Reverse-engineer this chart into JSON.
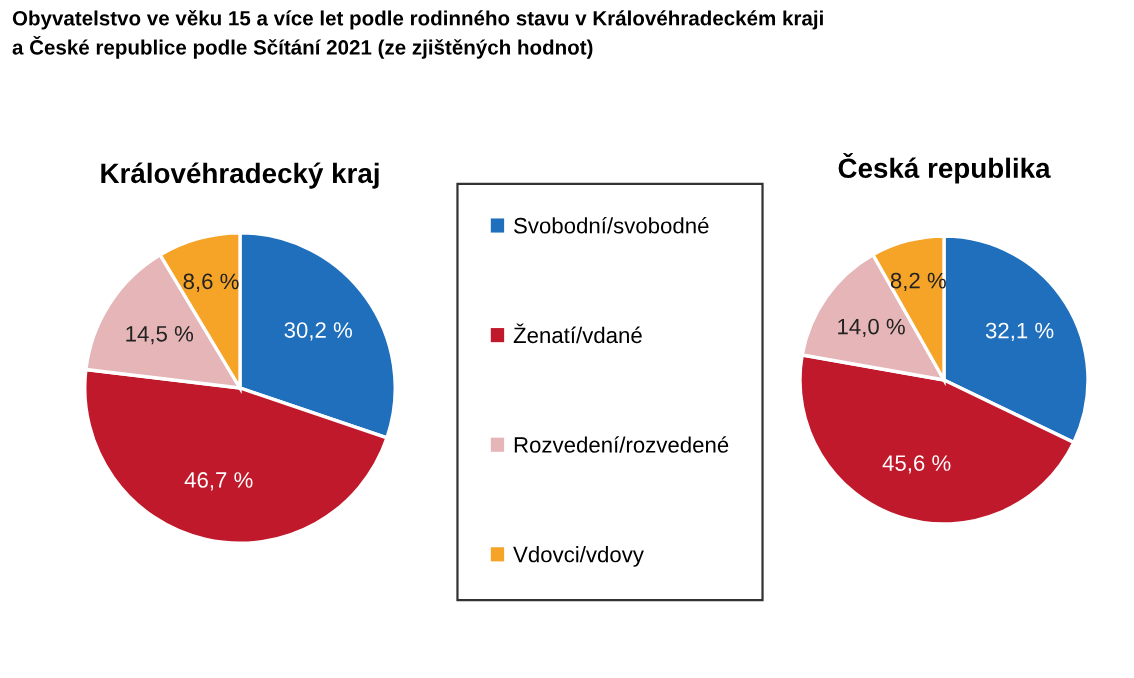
{
  "chart_data": [
    {
      "type": "pie",
      "title": "Obyvatelstvo ve věku 15 a více let podle rodinného stavu v Královéhradeckém kraji\na České republice podle Sčítání 2021 (ze zjištěných hodnot)",
      "subtitle": "Královéhradecký kraj",
      "categories": [
        "Svobodní/svobodné",
        "Ženatí/vdané",
        "Rozvedení/rozvedené",
        "Vdovci/vdovy"
      ],
      "values": [
        30.2,
        46.7,
        14.5,
        8.6
      ],
      "value_labels": [
        "30,2 %",
        "46,7 %",
        "14,5 %",
        "8,6 %"
      ],
      "colors": [
        "#1f6fbd",
        "#c0192b",
        "#e5b5b8",
        "#f5a428"
      ],
      "legend": "right"
    },
    {
      "type": "pie",
      "title": "Česká republika",
      "values": [
        32.1,
        45.6,
        14.0,
        8.2
      ],
      "value_labels": [
        "32,1 %",
        "45,6 %",
        "14,0 %",
        "8,2 %"
      ],
      "colors": [
        "#1f6fbd",
        "#c0192b",
        "#e5b5b8",
        "#f5a428"
      ]
    }
  ]
}
